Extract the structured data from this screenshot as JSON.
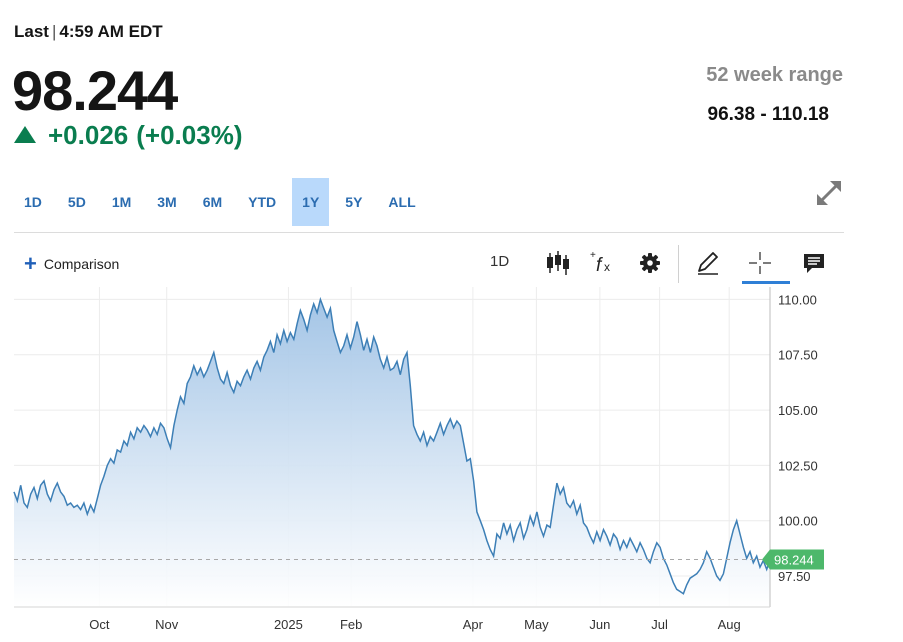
{
  "header": {
    "last_label": "Last",
    "separator": "|",
    "last_time": "4:59 AM EDT",
    "price": "98.244",
    "change": "+0.026",
    "change_pct": "(+0.03%)",
    "range_label": "52 week range",
    "range_value": "96.38 - 110.18"
  },
  "timeframes": [
    "1D",
    "5D",
    "1M",
    "3M",
    "6M",
    "YTD",
    "1Y",
    "5Y",
    "ALL"
  ],
  "active_timeframe": "1Y",
  "toolbar": {
    "comparison_label": "Comparison",
    "interval_label": "1D",
    "icons": [
      "candlestick-icon",
      "function-icon",
      "gear-icon",
      "pencil-icon",
      "crosshair-icon",
      "comment-icon"
    ]
  },
  "colors": {
    "up": "#0a7d4f",
    "line": "#3d7fb6",
    "area_top": "#9fc2e5",
    "area_bottom": "#ffffff",
    "active_tab": "#b9d9fb",
    "price_tag": "#4db86b"
  },
  "chart_data": {
    "type": "area",
    "x_tick_labels": [
      "Oct",
      "Nov",
      "2025",
      "Feb",
      "Apr",
      "May",
      "Jun",
      "Jul",
      "Aug"
    ],
    "y_tick_labels": [
      "110.00",
      "107.50",
      "105.00",
      "102.50",
      "100.00",
      "97.50"
    ],
    "ylim": [
      96.1,
      110.2
    ],
    "last_value_label": "98.244",
    "last_value": 98.244,
    "grid": true,
    "series": [
      {
        "values": [
          101.3,
          100.9,
          101.6,
          100.8,
          100.6,
          101.2,
          101.5,
          101.0,
          101.6,
          101.8,
          101.2,
          100.9,
          101.4,
          101.7,
          101.3,
          101.1,
          100.7,
          100.8,
          100.6,
          100.7,
          100.5,
          100.8,
          100.3,
          100.7,
          100.4,
          101.0,
          101.6,
          102.0,
          102.5,
          102.8,
          102.6,
          103.2,
          103.1,
          103.6,
          103.4,
          104.0,
          103.7,
          104.2,
          104.0,
          104.3,
          104.1,
          103.8,
          104.2,
          103.9,
          104.4,
          104.2,
          103.7,
          103.3,
          104.3,
          105.0,
          105.6,
          105.3,
          106.2,
          106.5,
          107.0,
          106.6,
          106.9,
          106.5,
          106.8,
          107.2,
          107.6,
          106.9,
          106.4,
          106.2,
          106.7,
          106.1,
          105.8,
          106.3,
          106.1,
          106.5,
          106.8,
          106.4,
          106.9,
          107.2,
          106.8,
          107.4,
          107.7,
          108.1,
          107.6,
          108.4,
          108.0,
          108.6,
          108.1,
          108.5,
          108.2,
          108.9,
          109.5,
          109.1,
          108.6,
          109.3,
          109.8,
          109.4,
          110.0,
          109.6,
          109.2,
          109.6,
          108.6,
          108.1,
          107.6,
          107.9,
          108.4,
          107.8,
          108.3,
          109.0,
          108.4,
          107.7,
          108.2,
          107.6,
          108.3,
          107.9,
          107.3,
          106.9,
          107.4,
          106.8,
          106.9,
          107.2,
          106.6,
          107.3,
          107.6,
          106.1,
          104.3,
          103.9,
          103.6,
          104.0,
          103.4,
          103.8,
          103.6,
          104.0,
          104.4,
          103.9,
          104.3,
          104.6,
          104.2,
          104.5,
          104.3,
          103.5,
          102.7,
          102.8,
          101.8,
          100.4,
          100.0,
          99.6,
          99.1,
          98.7,
          98.4,
          99.4,
          99.2,
          99.9,
          99.4,
          99.8,
          99.1,
          99.6,
          99.9,
          99.2,
          99.6,
          100.2,
          99.8,
          100.4,
          99.7,
          99.3,
          99.8,
          99.7,
          100.7,
          101.7,
          101.2,
          101.5,
          100.8,
          100.6,
          100.9,
          100.3,
          100.7,
          99.9,
          99.7,
          99.3,
          99.0,
          99.5,
          99.1,
          99.6,
          99.3,
          98.9,
          99.4,
          99.2,
          98.7,
          99.1,
          98.8,
          99.2,
          98.9,
          98.6,
          99.0,
          98.7,
          98.3,
          98.1,
          98.6,
          99.0,
          98.8,
          98.3,
          98.0,
          97.6,
          97.2,
          96.9,
          96.8,
          96.7,
          97.1,
          97.4,
          97.5,
          97.6,
          97.8,
          98.1,
          98.6,
          98.3,
          97.9,
          97.5,
          97.3,
          97.6,
          98.3,
          99.0,
          99.6,
          100.0,
          99.4,
          98.8,
          98.3,
          98.6,
          98.1,
          98.4,
          97.9,
          98.2,
          97.8,
          98.244
        ]
      }
    ]
  }
}
